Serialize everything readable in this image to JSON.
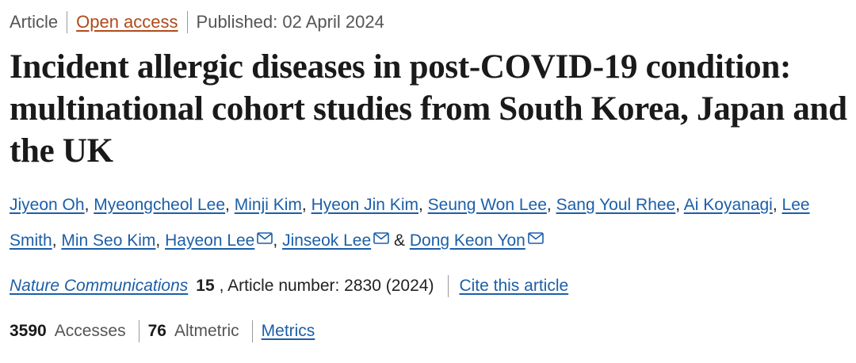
{
  "meta": {
    "type": "Article",
    "access": "Open access",
    "published": "Published: 02 April 2024"
  },
  "title": "Incident allergic diseases in post-COVID-19 condition: multinational cohort studies from South Korea, Japan and the UK",
  "authors": {
    "list": [
      "Jiyeon Oh",
      "Myeongcheol Lee",
      "Minji Kim",
      "Hyeon Jin Kim",
      "Seung Won Lee",
      "Sang Youl Rhee",
      "Ai Koyanagi",
      "Lee Smith",
      "Min Seo Kim",
      "Hayeon Lee",
      "Jinseok Lee",
      "Dong Keon Yon"
    ],
    "separator": ",",
    "final_separator": "&"
  },
  "journal": {
    "name": "Nature Communications",
    "volume": "15",
    "article_number": ", Article number: 2830 (2024)",
    "cite": "Cite this article"
  },
  "metrics": {
    "accesses_value": "3590",
    "accesses_label": "Accesses",
    "altmetric_value": "76",
    "altmetric_label": "Altmetric",
    "metrics_link": "Metrics"
  },
  "icons": {
    "corresponding_author": "mail-icon"
  },
  "colors": {
    "link": "#1c5fa8",
    "open_access": "#b14a19",
    "text": "#222222",
    "muted": "#555555"
  }
}
